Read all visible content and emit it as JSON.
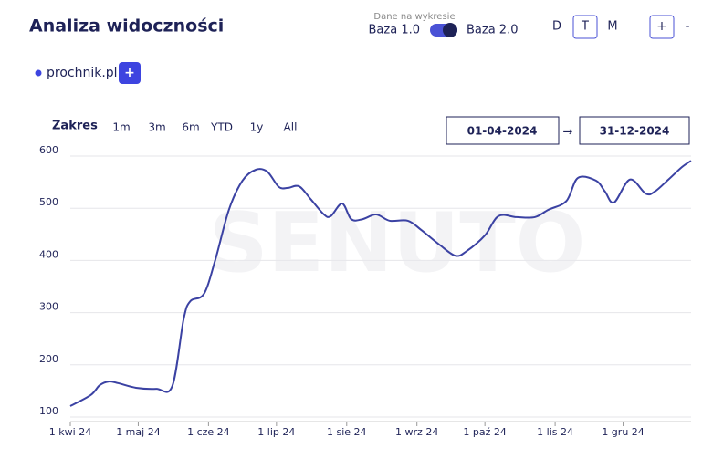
{
  "ui": {
    "title": "Analiza widoczności",
    "data_caption": "Dane na wykresie",
    "base_left": "Baza 1.0",
    "base_right": "Baza 2.0",
    "granularity": [
      "D",
      "T",
      "M"
    ],
    "zoom_in": "+",
    "zoom_out": "-",
    "add_domain": "+",
    "range_label": "Zakres",
    "range_buttons": [
      "1m",
      "3m",
      "6m",
      "YTD",
      "1y",
      "All"
    ],
    "date_from": "01-04-2024",
    "range_arrow": "→",
    "date_to": "31-12-2024",
    "watermark": "SENUTO"
  },
  "chart_data": {
    "type": "line",
    "x": [
      "2024-04-01",
      "2024-04-10",
      "2024-04-14",
      "2024-04-18",
      "2024-04-22",
      "2024-04-30",
      "2024-05-09",
      "2024-05-16",
      "2024-05-21",
      "2024-05-24",
      "2024-05-30",
      "2024-06-04",
      "2024-06-10",
      "2024-06-16",
      "2024-06-22",
      "2024-06-27",
      "2024-07-02",
      "2024-07-06",
      "2024-07-11",
      "2024-07-16",
      "2024-07-22",
      "2024-07-25",
      "2024-07-30",
      "2024-08-03",
      "2024-08-08",
      "2024-08-14",
      "2024-08-20",
      "2024-08-28",
      "2024-09-03",
      "2024-09-11",
      "2024-09-18",
      "2024-09-23",
      "2024-10-01",
      "2024-10-07",
      "2024-10-15",
      "2024-10-23",
      "2024-10-29",
      "2024-11-06",
      "2024-11-11",
      "2024-11-19",
      "2024-11-23",
      "2024-11-27",
      "2024-12-04",
      "2024-12-11",
      "2024-12-15",
      "2024-12-21",
      "2024-12-27",
      "2024-12-31"
    ],
    "series": [
      {
        "name": "prochnik.pl",
        "color": "#3b42a3",
        "values": [
          121,
          142,
          161,
          168,
          165,
          156,
          154,
          159,
          287,
          322,
          336,
          401,
          497,
          553,
          574,
          570,
          541,
          539,
          542,
          518,
          488,
          485,
          509,
          479,
          479,
          488,
          476,
          476,
          458,
          430,
          409,
          418,
          448,
          485,
          483,
          483,
          497,
          514,
          558,
          553,
          532,
          511,
          555,
          528,
          532,
          555,
          579,
          591
        ]
      }
    ],
    "xlim": [
      "2024-04-01",
      "2024-12-31"
    ],
    "xticks": [
      {
        "value": "2024-04-01",
        "label": "1 kwi 24"
      },
      {
        "value": "2024-05-01",
        "label": "1 maj 24"
      },
      {
        "value": "2024-06-01",
        "label": "1 cze 24"
      },
      {
        "value": "2024-07-01",
        "label": "1 lip 24"
      },
      {
        "value": "2024-08-01",
        "label": "1 sie 24"
      },
      {
        "value": "2024-09-01",
        "label": "1 wrz 24"
      },
      {
        "value": "2024-10-01",
        "label": "1 paź 24"
      },
      {
        "value": "2024-11-01",
        "label": "1 lis 24"
      },
      {
        "value": "2024-12-01",
        "label": "1 gru 24"
      }
    ],
    "ylim": [
      100,
      600
    ],
    "yticks": [
      100,
      200,
      300,
      400,
      500,
      600
    ],
    "grid": true
  }
}
